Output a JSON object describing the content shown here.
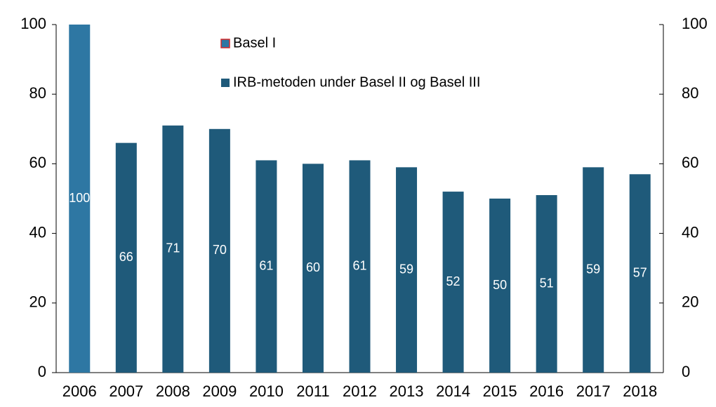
{
  "chart_data": {
    "type": "bar",
    "categories": [
      "2006",
      "2007",
      "2008",
      "2009",
      "2010",
      "2011",
      "2012",
      "2013",
      "2014",
      "2015",
      "2016",
      "2017",
      "2018"
    ],
    "series": [
      {
        "name": "Basel I",
        "color": "#2e77a3",
        "values": [
          100,
          null,
          null,
          null,
          null,
          null,
          null,
          null,
          null,
          null,
          null,
          null,
          null
        ]
      },
      {
        "name": "IRB-metoden under Basel II og Basel III",
        "color": "#1f5a7a",
        "values": [
          null,
          66,
          71,
          70,
          61,
          60,
          61,
          59,
          52,
          50,
          51,
          59,
          57
        ]
      }
    ],
    "ylim": [
      0,
      100
    ],
    "yticks": [
      0,
      20,
      40,
      60,
      80,
      100
    ],
    "y2lim": [
      0,
      100
    ],
    "y2ticks": [
      0,
      20,
      40,
      60,
      80,
      100
    ]
  }
}
